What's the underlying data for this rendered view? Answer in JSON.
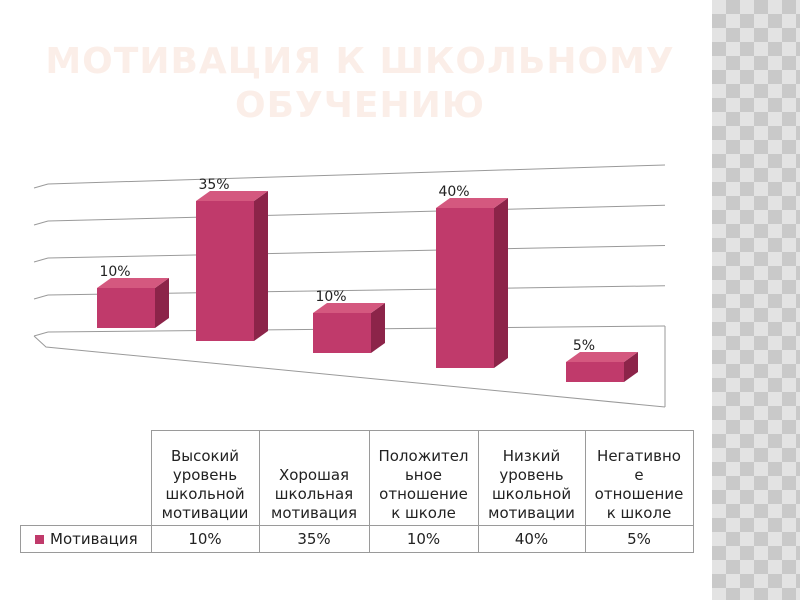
{
  "slide": {
    "title": "МОТИВАЦИЯ К ШКОЛЬНОМУ ОБУЧЕНИЮ"
  },
  "colors": {
    "bar_front": "#c03a6b",
    "bar_side": "#8c2449",
    "bar_top": "#d4587f",
    "title": "#fbeee8",
    "grid": "#9a9a9a"
  },
  "chart_data": {
    "type": "bar",
    "categories": [
      "Высокий уровень школьной мотивации",
      "Хорошая школьная мотивация",
      "Положительное отношение к школе",
      "Низкий уровень школьной мотивации",
      "Негативное отношение к школе"
    ],
    "series": [
      {
        "name": "Мотивация",
        "values": [
          10,
          35,
          10,
          40,
          5
        ]
      }
    ],
    "data_labels": [
      "10%",
      "35%",
      "10%",
      "40%",
      "5%"
    ],
    "ylim": [
      0,
      40
    ],
    "grid": true,
    "legend": "table",
    "table": {
      "headers": [
        [
          "Высокий",
          "уровень",
          "школьной",
          "мотивации"
        ],
        [
          "Хорошая",
          "школьная",
          "мотивация"
        ],
        [
          "Положител",
          "ьное",
          "отношение",
          "к школе"
        ],
        [
          "Низкий",
          "уровень",
          "школьной",
          "мотивации"
        ],
        [
          "Негативно",
          "е",
          "отношение",
          "к школе"
        ]
      ],
      "series_label": "Мотивация",
      "values": [
        "10%",
        "35%",
        "10%",
        "40%",
        "5%"
      ]
    }
  }
}
